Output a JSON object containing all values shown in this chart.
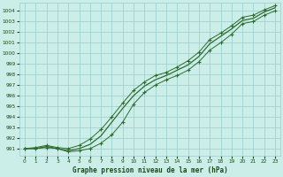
{
  "title": "Graphe pression niveau de la mer (hPa)",
  "xlabel_ticks": [
    0,
    1,
    2,
    3,
    4,
    5,
    6,
    7,
    8,
    9,
    10,
    11,
    12,
    13,
    14,
    15,
    16,
    17,
    18,
    19,
    20,
    21,
    22,
    23
  ],
  "ylabel_ticks": [
    991,
    992,
    993,
    994,
    995,
    996,
    997,
    998,
    999,
    1000,
    1001,
    1002,
    1003,
    1004
  ],
  "xlim": [
    -0.5,
    23.5
  ],
  "ylim": [
    990.3,
    1004.8
  ],
  "background_color": "#cceee8",
  "grid_color": "#99cccc",
  "line_color": "#2d6b2d",
  "title_color": "#1a4a1a",
  "line1_x": [
    0,
    1,
    2,
    3,
    4,
    5,
    6,
    7,
    8,
    9,
    10,
    11,
    12,
    13,
    14,
    15,
    16,
    17,
    18,
    19,
    20,
    21,
    22,
    23
  ],
  "line1_y": [
    991.0,
    991.0,
    991.1,
    991.0,
    990.7,
    990.8,
    991.0,
    991.5,
    992.3,
    993.5,
    995.2,
    996.3,
    997.0,
    997.5,
    997.9,
    998.4,
    999.2,
    1000.3,
    1001.0,
    1001.8,
    1002.8,
    1003.0,
    1003.6,
    1004.0
  ],
  "line2_x": [
    0,
    1,
    2,
    3,
    4,
    5,
    6,
    7,
    8,
    9,
    10,
    11,
    12,
    13,
    14,
    15,
    16,
    17,
    18,
    19,
    20,
    21,
    22,
    23
  ],
  "line2_y": [
    991.0,
    991.0,
    991.2,
    991.0,
    990.8,
    991.0,
    991.4,
    992.2,
    993.5,
    994.8,
    996.0,
    996.9,
    997.5,
    997.9,
    998.4,
    998.9,
    999.7,
    1000.9,
    1001.6,
    1002.3,
    1003.1,
    1003.3,
    1003.9,
    1004.3
  ],
  "line3_x": [
    0,
    1,
    2,
    3,
    4,
    5,
    6,
    7,
    8,
    9,
    10,
    11,
    12,
    13,
    14,
    15,
    16,
    17,
    18,
    19,
    20,
    21,
    22,
    23
  ],
  "line3_y": [
    991.0,
    991.1,
    991.3,
    991.1,
    991.0,
    991.3,
    991.9,
    992.8,
    994.0,
    995.3,
    996.5,
    997.3,
    997.9,
    998.2,
    998.7,
    999.3,
    1000.1,
    1001.3,
    1001.9,
    1002.6,
    1003.4,
    1003.6,
    1004.1,
    1004.5
  ]
}
